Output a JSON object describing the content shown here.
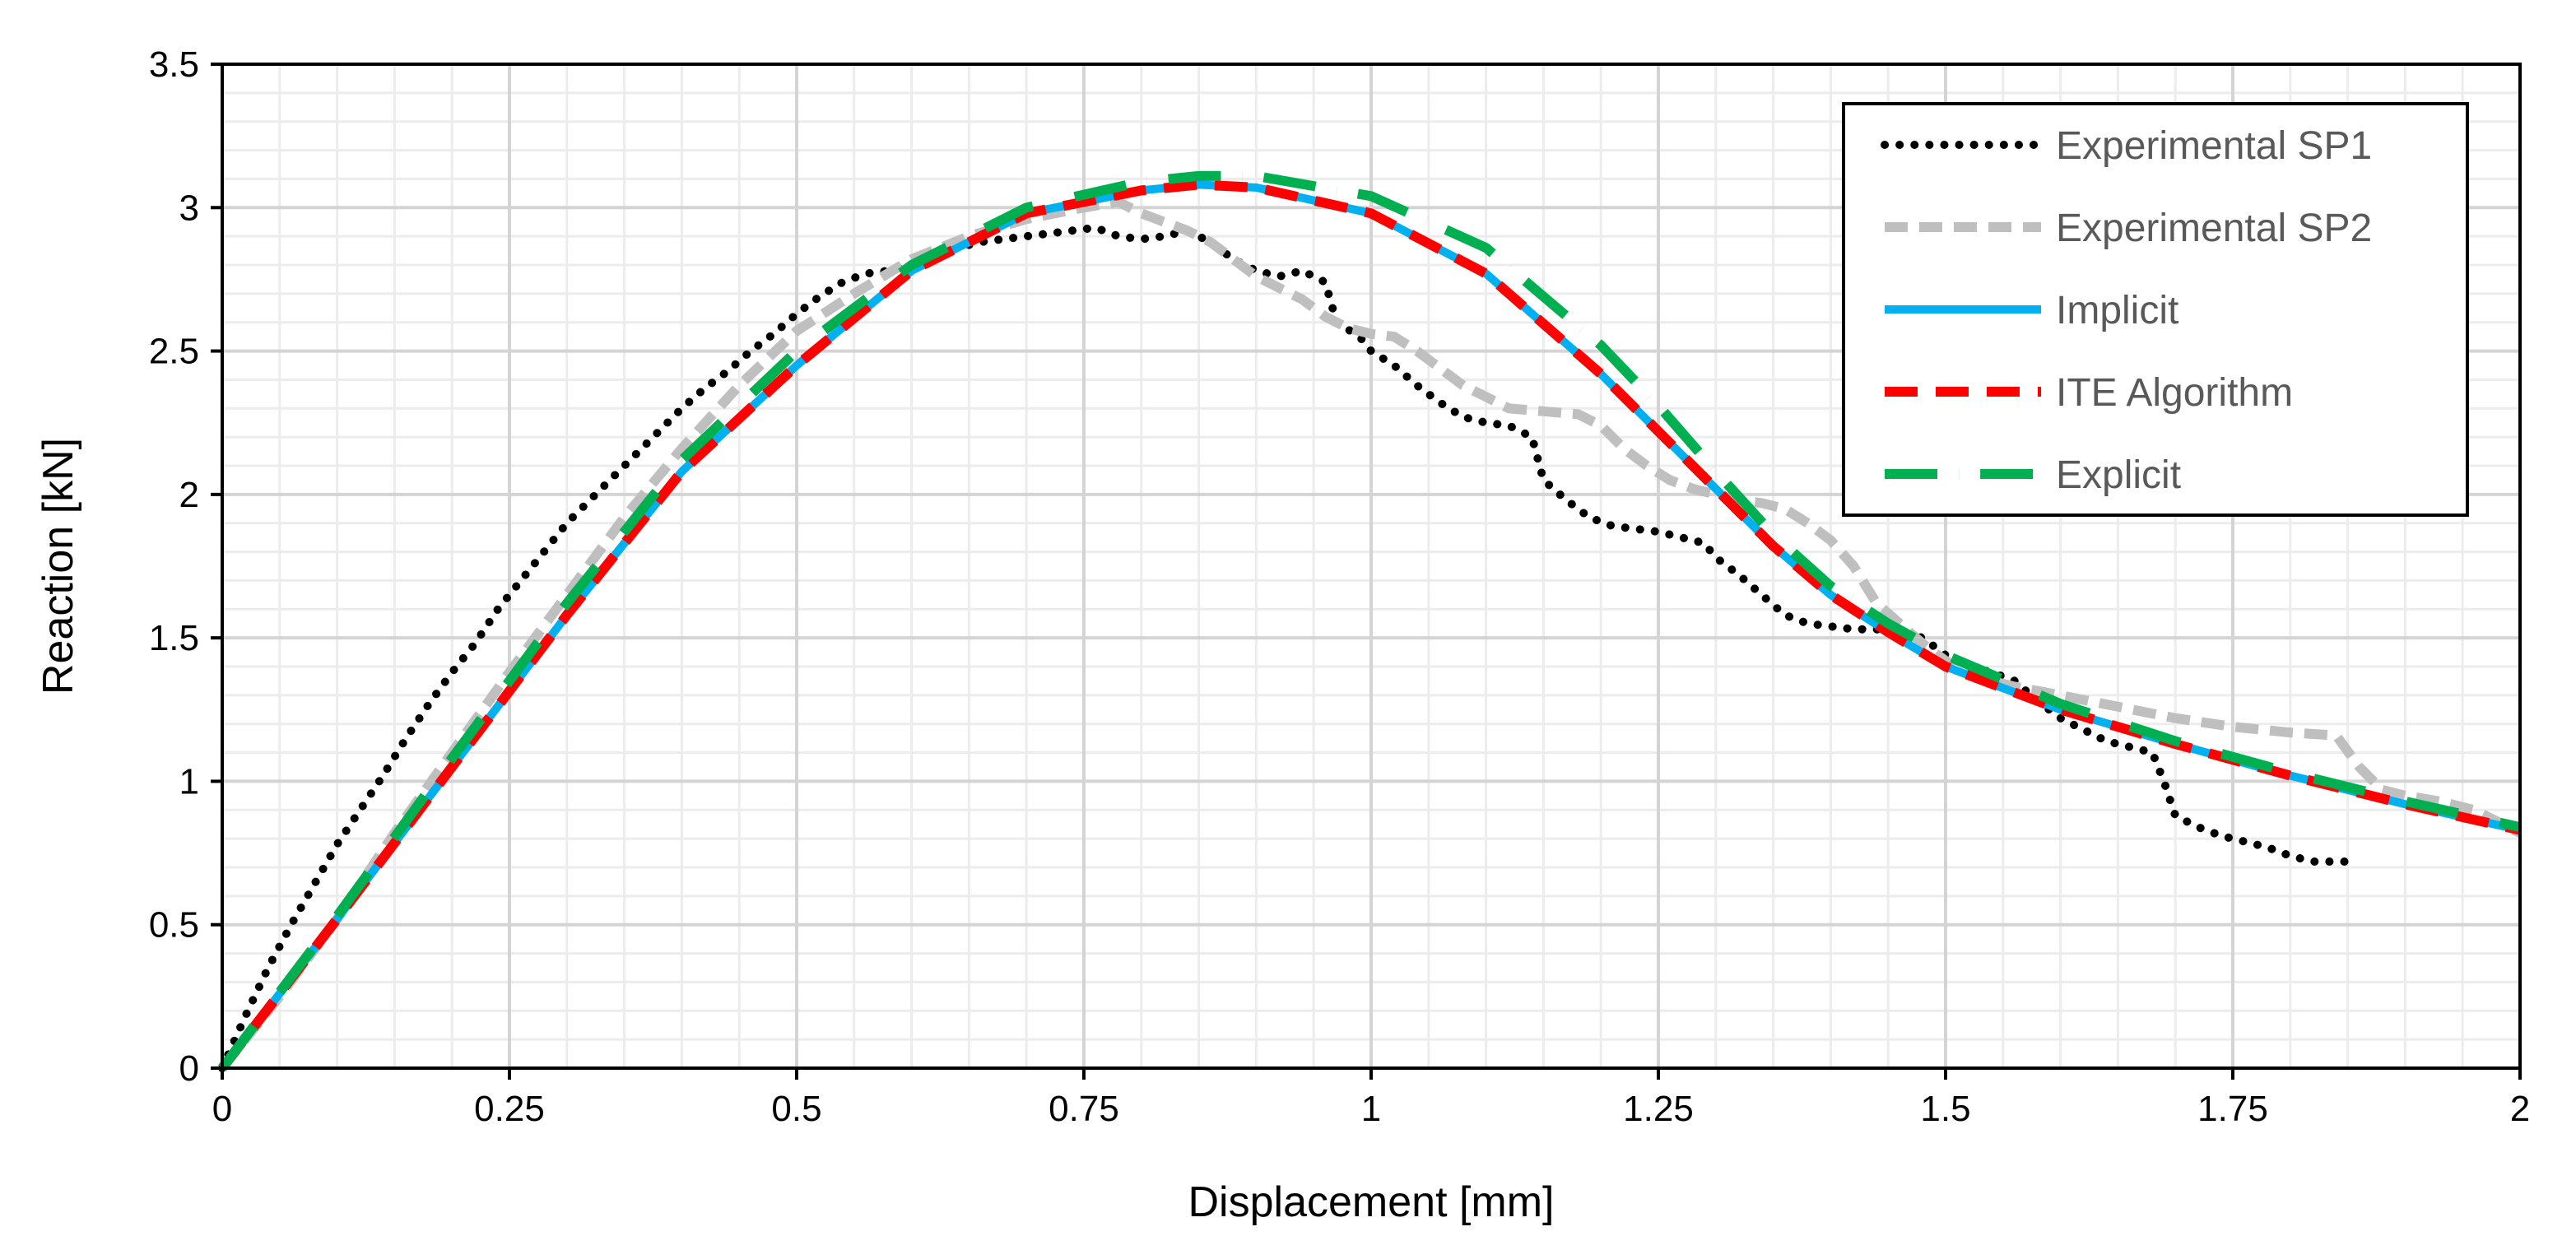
{
  "chart_data": {
    "type": "line",
    "title": "",
    "xlabel": "Displacement [mm]",
    "ylabel": "Reaction [kN]",
    "xlim": [
      0,
      2
    ],
    "ylim": [
      0,
      3.5
    ],
    "x_ticks": [
      0,
      0.25,
      0.5,
      0.75,
      1,
      1.25,
      1.5,
      1.75,
      2
    ],
    "x_tick_labels": [
      "0",
      "0.25",
      "0.5",
      "0.75",
      "1",
      "1.25",
      "1.5",
      "1.75",
      "2"
    ],
    "y_ticks": [
      0,
      0.5,
      1,
      1.5,
      2,
      2.5,
      3,
      3.5
    ],
    "y_tick_labels": [
      "0",
      "0.5",
      "1",
      "1.5",
      "2",
      "2.5",
      "3",
      "3.5"
    ],
    "grid": true,
    "legend_position": "top-right",
    "series": [
      {
        "name": "Experimental SP1",
        "color": "#000000",
        "style": "dotted",
        "points": [
          [
            0,
            0
          ],
          [
            0.02,
            0.18
          ],
          [
            0.04,
            0.35
          ],
          [
            0.06,
            0.5
          ],
          [
            0.08,
            0.64
          ],
          [
            0.1,
            0.78
          ],
          [
            0.12,
            0.9
          ],
          [
            0.14,
            1.02
          ],
          [
            0.16,
            1.15
          ],
          [
            0.18,
            1.27
          ],
          [
            0.2,
            1.38
          ],
          [
            0.22,
            1.48
          ],
          [
            0.24,
            1.6
          ],
          [
            0.26,
            1.7
          ],
          [
            0.28,
            1.8
          ],
          [
            0.3,
            1.9
          ],
          [
            0.32,
            1.98
          ],
          [
            0.34,
            2.06
          ],
          [
            0.36,
            2.14
          ],
          [
            0.38,
            2.22
          ],
          [
            0.4,
            2.3
          ],
          [
            0.42,
            2.37
          ],
          [
            0.44,
            2.43
          ],
          [
            0.46,
            2.5
          ],
          [
            0.48,
            2.56
          ],
          [
            0.5,
            2.63
          ],
          [
            0.52,
            2.69
          ],
          [
            0.54,
            2.74
          ],
          [
            0.56,
            2.77
          ],
          [
            0.58,
            2.78
          ],
          [
            0.6,
            2.8
          ],
          [
            0.62,
            2.84
          ],
          [
            0.64,
            2.86
          ],
          [
            0.66,
            2.88
          ],
          [
            0.68,
            2.89
          ],
          [
            0.7,
            2.9
          ],
          [
            0.72,
            2.91
          ],
          [
            0.74,
            2.92
          ],
          [
            0.76,
            2.93
          ],
          [
            0.78,
            2.9
          ],
          [
            0.8,
            2.89
          ],
          [
            0.82,
            2.9
          ],
          [
            0.84,
            2.92
          ],
          [
            0.86,
            2.88
          ],
          [
            0.88,
            2.82
          ],
          [
            0.9,
            2.78
          ],
          [
            0.92,
            2.76
          ],
          [
            0.94,
            2.78
          ],
          [
            0.96,
            2.74
          ],
          [
            0.97,
            2.6
          ],
          [
            0.99,
            2.55
          ],
          [
            1.0,
            2.5
          ],
          [
            1.02,
            2.45
          ],
          [
            1.04,
            2.38
          ],
          [
            1.06,
            2.32
          ],
          [
            1.08,
            2.27
          ],
          [
            1.1,
            2.25
          ],
          [
            1.12,
            2.24
          ],
          [
            1.14,
            2.2
          ],
          [
            1.15,
            2.05
          ],
          [
            1.17,
            1.98
          ],
          [
            1.19,
            1.92
          ],
          [
            1.21,
            1.89
          ],
          [
            1.23,
            1.88
          ],
          [
            1.25,
            1.87
          ],
          [
            1.27,
            1.85
          ],
          [
            1.29,
            1.83
          ],
          [
            1.3,
            1.78
          ],
          [
            1.32,
            1.72
          ],
          [
            1.34,
            1.65
          ],
          [
            1.36,
            1.58
          ],
          [
            1.38,
            1.55
          ],
          [
            1.4,
            1.54
          ],
          [
            1.42,
            1.53
          ],
          [
            1.44,
            1.53
          ],
          [
            1.46,
            1.52
          ],
          [
            1.48,
            1.5
          ],
          [
            1.5,
            1.44
          ],
          [
            1.52,
            1.4
          ],
          [
            1.54,
            1.38
          ],
          [
            1.56,
            1.35
          ],
          [
            1.58,
            1.28
          ],
          [
            1.6,
            1.22
          ],
          [
            1.62,
            1.18
          ],
          [
            1.64,
            1.14
          ],
          [
            1.66,
            1.12
          ],
          [
            1.68,
            1.1
          ],
          [
            1.69,
            1.0
          ],
          [
            1.7,
            0.88
          ],
          [
            1.72,
            0.84
          ],
          [
            1.74,
            0.81
          ],
          [
            1.76,
            0.79
          ],
          [
            1.78,
            0.77
          ],
          [
            1.8,
            0.74
          ],
          [
            1.82,
            0.72
          ],
          [
            1.85,
            0.72
          ]
        ]
      },
      {
        "name": "Experimental SP2",
        "color": "#bfbfbf",
        "style": "dashed",
        "points": [
          [
            0,
            0
          ],
          [
            0.05,
            0.25
          ],
          [
            0.1,
            0.52
          ],
          [
            0.15,
            0.82
          ],
          [
            0.2,
            1.1
          ],
          [
            0.25,
            1.38
          ],
          [
            0.3,
            1.65
          ],
          [
            0.35,
            1.92
          ],
          [
            0.4,
            2.16
          ],
          [
            0.45,
            2.38
          ],
          [
            0.5,
            2.57
          ],
          [
            0.55,
            2.7
          ],
          [
            0.6,
            2.82
          ],
          [
            0.65,
            2.9
          ],
          [
            0.7,
            2.96
          ],
          [
            0.75,
            3.0
          ],
          [
            0.78,
            3.02
          ],
          [
            0.8,
            2.98
          ],
          [
            0.82,
            2.95
          ],
          [
            0.84,
            2.92
          ],
          [
            0.86,
            2.88
          ],
          [
            0.88,
            2.82
          ],
          [
            0.9,
            2.76
          ],
          [
            0.92,
            2.72
          ],
          [
            0.94,
            2.68
          ],
          [
            0.96,
            2.62
          ],
          [
            0.98,
            2.58
          ],
          [
            1.0,
            2.56
          ],
          [
            1.02,
            2.55
          ],
          [
            1.04,
            2.5
          ],
          [
            1.06,
            2.44
          ],
          [
            1.08,
            2.38
          ],
          [
            1.1,
            2.34
          ],
          [
            1.12,
            2.3
          ],
          [
            1.15,
            2.29
          ],
          [
            1.18,
            2.28
          ],
          [
            1.2,
            2.24
          ],
          [
            1.22,
            2.16
          ],
          [
            1.24,
            2.1
          ],
          [
            1.26,
            2.05
          ],
          [
            1.28,
            2.02
          ],
          [
            1.3,
            2.0
          ],
          [
            1.32,
            1.98
          ],
          [
            1.34,
            1.97
          ],
          [
            1.36,
            1.95
          ],
          [
            1.38,
            1.9
          ],
          [
            1.4,
            1.84
          ],
          [
            1.42,
            1.75
          ],
          [
            1.44,
            1.62
          ],
          [
            1.46,
            1.55
          ],
          [
            1.48,
            1.48
          ],
          [
            1.5,
            1.42
          ],
          [
            1.52,
            1.38
          ],
          [
            1.54,
            1.35
          ],
          [
            1.56,
            1.33
          ],
          [
            1.6,
            1.3
          ],
          [
            1.65,
            1.26
          ],
          [
            1.7,
            1.22
          ],
          [
            1.75,
            1.19
          ],
          [
            1.8,
            1.17
          ],
          [
            1.84,
            1.16
          ],
          [
            1.86,
            1.05
          ],
          [
            1.88,
            0.97
          ],
          [
            1.9,
            0.95
          ],
          [
            1.93,
            0.93
          ],
          [
            1.96,
            0.9
          ],
          [
            2.0,
            0.82
          ]
        ]
      },
      {
        "name": "Implicit",
        "color": "#00b0f0",
        "style": "solid",
        "points": [
          [
            0,
            0
          ],
          [
            0.1,
            0.52
          ],
          [
            0.2,
            1.05
          ],
          [
            0.3,
            1.58
          ],
          [
            0.4,
            2.08
          ],
          [
            0.5,
            2.45
          ],
          [
            0.6,
            2.78
          ],
          [
            0.7,
            2.98
          ],
          [
            0.8,
            3.06
          ],
          [
            0.85,
            3.08
          ],
          [
            0.9,
            3.07
          ],
          [
            1.0,
            2.98
          ],
          [
            1.1,
            2.77
          ],
          [
            1.2,
            2.42
          ],
          [
            1.25,
            2.22
          ],
          [
            1.3,
            2.02
          ],
          [
            1.35,
            1.82
          ],
          [
            1.4,
            1.65
          ],
          [
            1.45,
            1.52
          ],
          [
            1.5,
            1.4
          ],
          [
            1.6,
            1.25
          ],
          [
            1.7,
            1.13
          ],
          [
            1.8,
            1.02
          ],
          [
            1.9,
            0.92
          ],
          [
            2.0,
            0.83
          ]
        ]
      },
      {
        "name": "ITE Algorithm",
        "color": "#ff0000",
        "style": "dashed",
        "points": [
          [
            0,
            0
          ],
          [
            0.1,
            0.52
          ],
          [
            0.2,
            1.05
          ],
          [
            0.3,
            1.58
          ],
          [
            0.4,
            2.08
          ],
          [
            0.5,
            2.45
          ],
          [
            0.6,
            2.78
          ],
          [
            0.7,
            2.98
          ],
          [
            0.8,
            3.06
          ],
          [
            0.85,
            3.08
          ],
          [
            0.9,
            3.07
          ],
          [
            1.0,
            2.98
          ],
          [
            1.1,
            2.77
          ],
          [
            1.2,
            2.42
          ],
          [
            1.25,
            2.22
          ],
          [
            1.3,
            2.02
          ],
          [
            1.35,
            1.82
          ],
          [
            1.4,
            1.65
          ],
          [
            1.45,
            1.52
          ],
          [
            1.5,
            1.4
          ],
          [
            1.6,
            1.25
          ],
          [
            1.7,
            1.13
          ],
          [
            1.8,
            1.02
          ],
          [
            1.9,
            0.92
          ],
          [
            2.0,
            0.83
          ]
        ]
      },
      {
        "name": "Explicit",
        "color": "#00b050",
        "style": "dashdot",
        "points": [
          [
            0,
            0
          ],
          [
            0.1,
            0.53
          ],
          [
            0.2,
            1.08
          ],
          [
            0.3,
            1.62
          ],
          [
            0.4,
            2.12
          ],
          [
            0.5,
            2.5
          ],
          [
            0.6,
            2.8
          ],
          [
            0.7,
            3.0
          ],
          [
            0.8,
            3.09
          ],
          [
            0.85,
            3.11
          ],
          [
            0.9,
            3.11
          ],
          [
            1.0,
            3.04
          ],
          [
            1.1,
            2.86
          ],
          [
            1.2,
            2.52
          ],
          [
            1.25,
            2.31
          ],
          [
            1.3,
            2.08
          ],
          [
            1.35,
            1.86
          ],
          [
            1.4,
            1.68
          ],
          [
            1.45,
            1.55
          ],
          [
            1.5,
            1.44
          ],
          [
            1.6,
            1.27
          ],
          [
            1.7,
            1.14
          ],
          [
            1.8,
            1.03
          ],
          [
            1.9,
            0.93
          ],
          [
            2.0,
            0.84
          ]
        ]
      }
    ]
  }
}
